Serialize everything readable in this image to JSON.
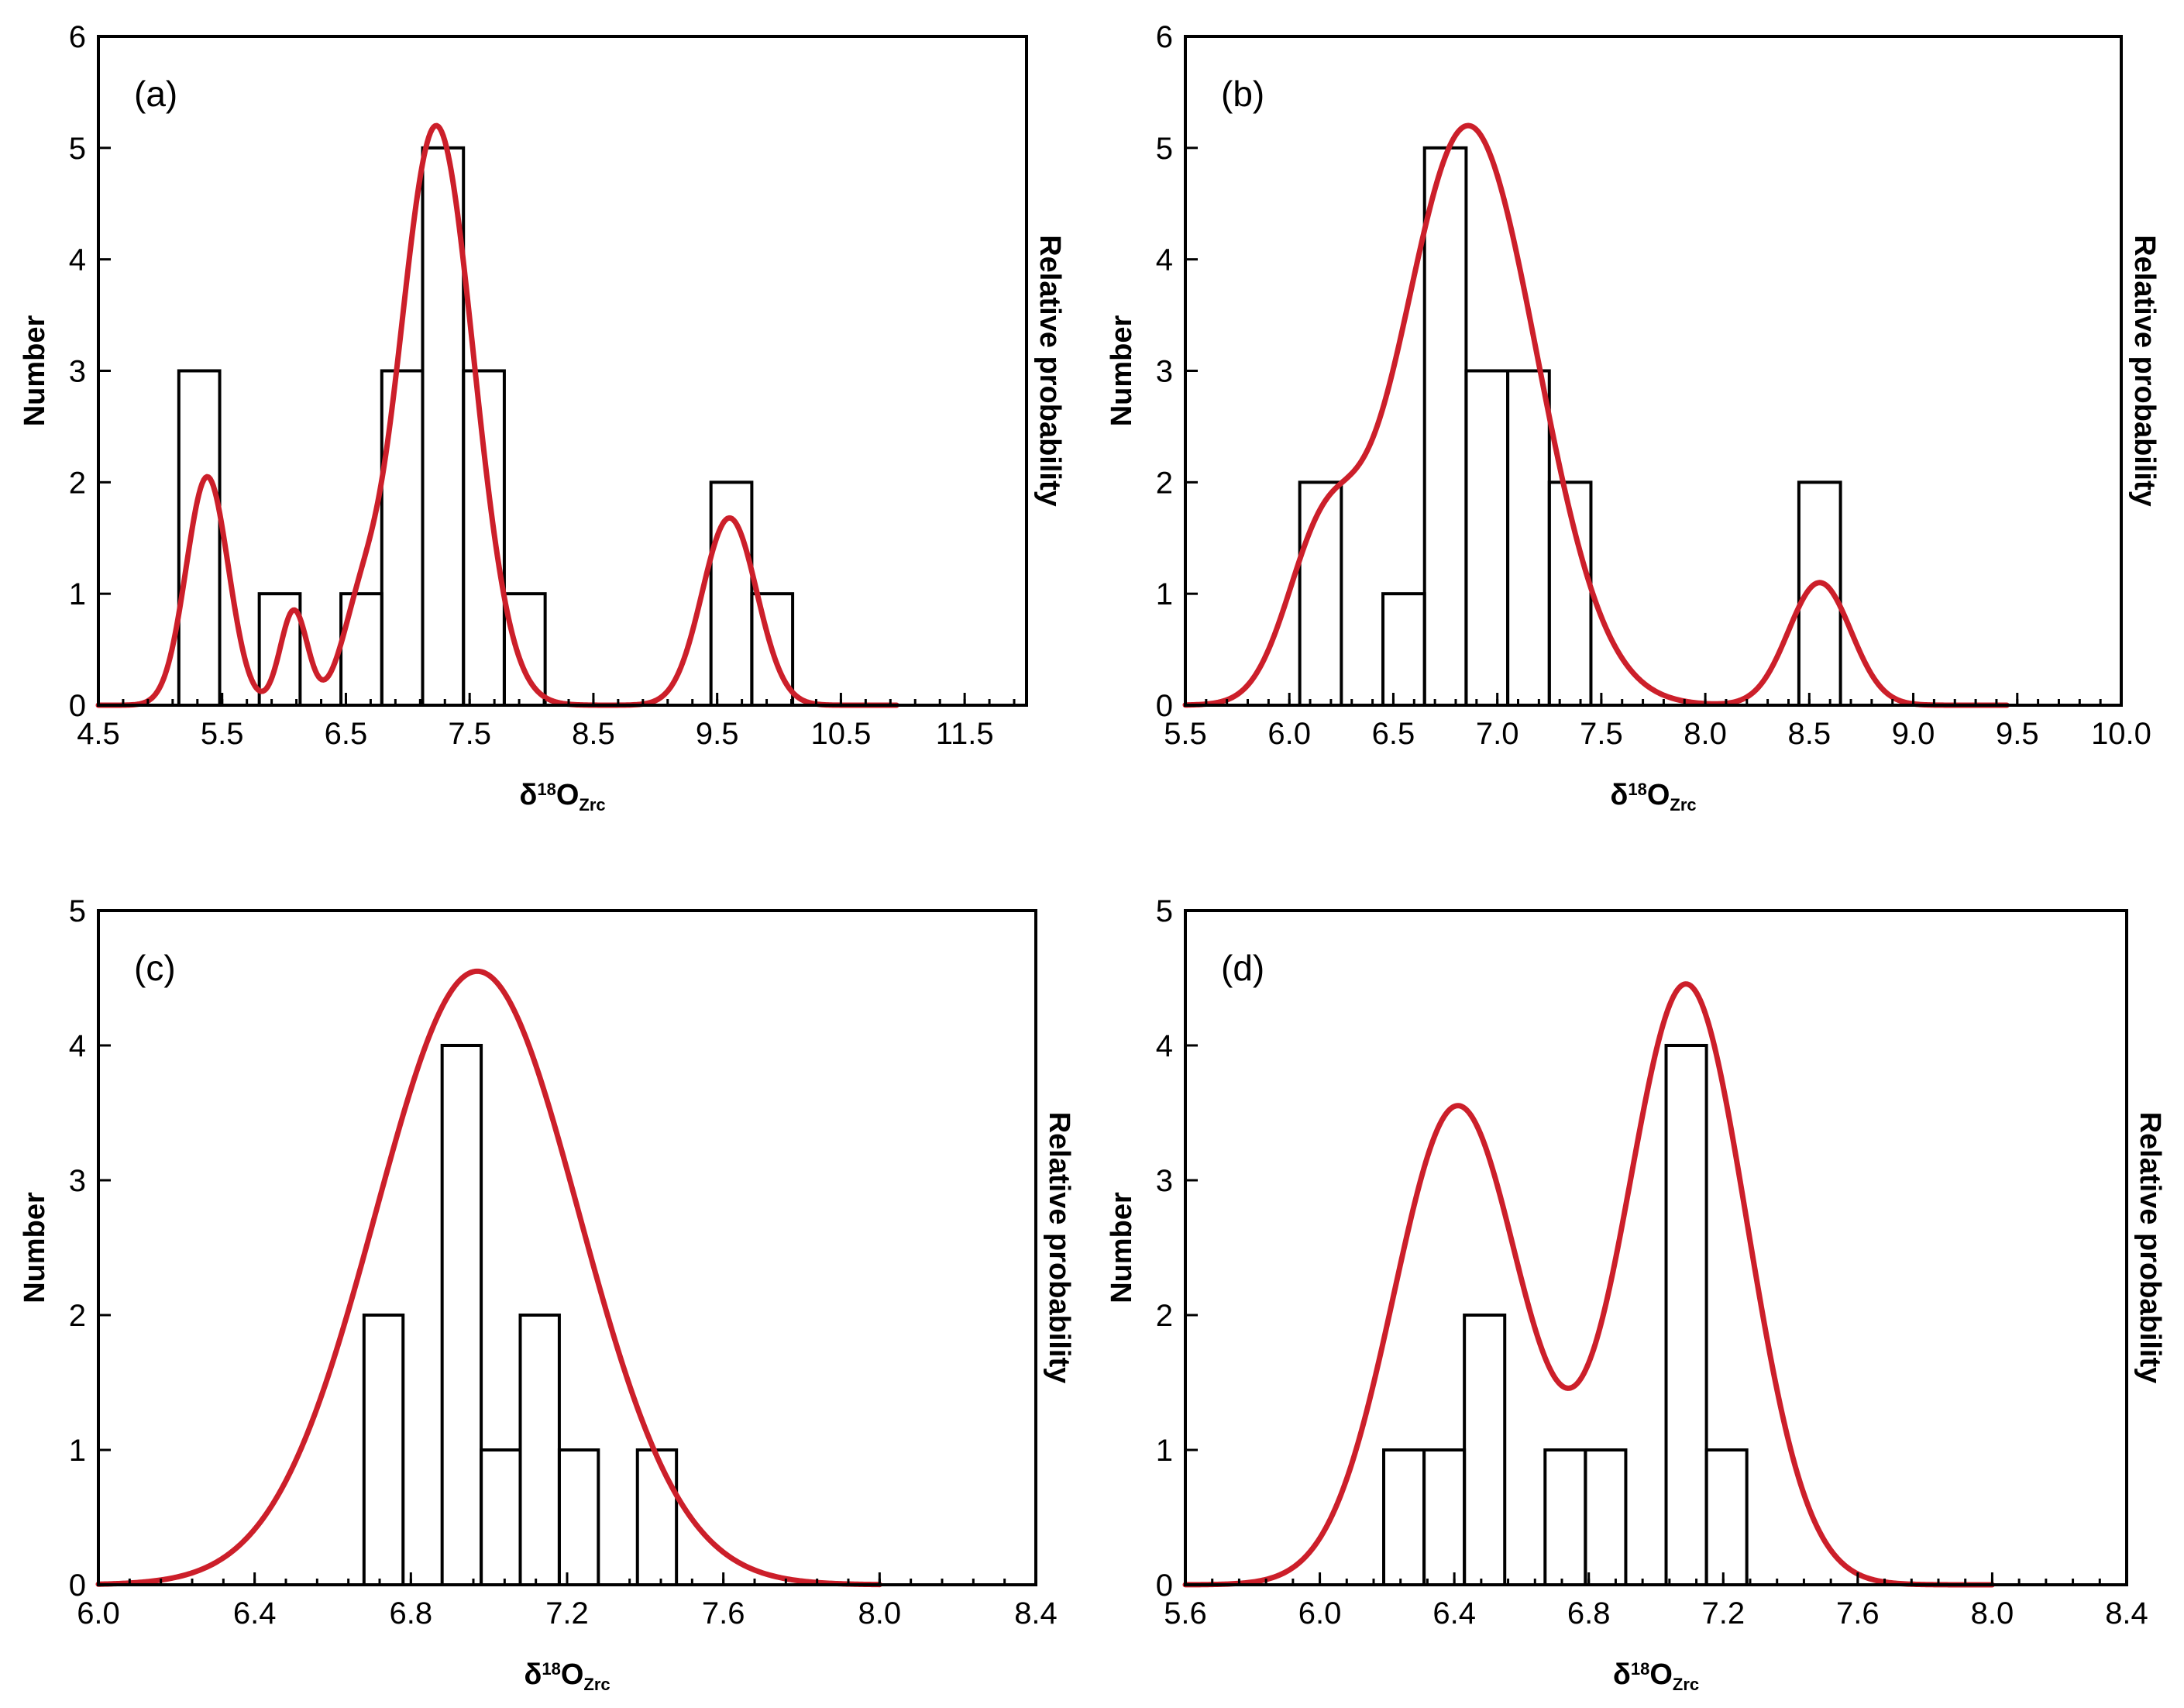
{
  "colors": {
    "curve": "#cc1f2a",
    "axis": "#000000",
    "bar_stroke": "#000000"
  },
  "chart_data": [
    {
      "type": "bar",
      "label": "(a)",
      "ylabel": "Number",
      "ylabel_right": "Relative probability",
      "xlabel": {
        "prefix": "δ",
        "sup": "18",
        "main": "O",
        "sub": "Zrc"
      },
      "xlim": [
        4.5,
        12.0
      ],
      "ylim": [
        0,
        6
      ],
      "xticks": [
        "4.5",
        "5.5",
        "6.5",
        "7.5",
        "8.5",
        "9.5",
        "10.5",
        "11.5"
      ],
      "xtick_values": [
        4.5,
        5.5,
        6.5,
        7.5,
        8.5,
        9.5,
        10.5,
        11.5
      ],
      "yticks": [
        "0",
        "1",
        "2",
        "3",
        "4",
        "5",
        "6"
      ],
      "ytick_values": [
        0,
        1,
        2,
        3,
        4,
        5,
        6
      ],
      "bars": [
        {
          "x0": 5.15,
          "x1": 5.48,
          "count": 3
        },
        {
          "x0": 5.8,
          "x1": 6.13,
          "count": 1
        },
        {
          "x0": 6.13,
          "x1": 6.46,
          "count": 0
        },
        {
          "x0": 6.46,
          "x1": 6.79,
          "count": 1
        },
        {
          "x0": 6.79,
          "x1": 7.12,
          "count": 3
        },
        {
          "x0": 7.12,
          "x1": 7.45,
          "count": 5
        },
        {
          "x0": 7.45,
          "x1": 7.78,
          "count": 3
        },
        {
          "x0": 7.78,
          "x1": 8.11,
          "count": 1
        },
        {
          "x0": 9.45,
          "x1": 9.78,
          "count": 2
        },
        {
          "x0": 9.78,
          "x1": 10.11,
          "count": 1
        }
      ],
      "curve": {
        "x_range": [
          4.5,
          10.95
        ],
        "peaks": [
          {
            "mu": 5.38,
            "sigma": 0.17,
            "amp": 2.05
          },
          {
            "mu": 6.08,
            "sigma": 0.11,
            "amp": 0.85
          },
          {
            "mu": 6.6,
            "sigma": 0.15,
            "amp": 0.55
          },
          {
            "mu": 7.23,
            "sigma": 0.3,
            "amp": 5.2
          },
          {
            "mu": 9.6,
            "sigma": 0.22,
            "amp": 1.68
          }
        ]
      }
    },
    {
      "type": "bar",
      "label": "(b)",
      "ylabel": "Number",
      "ylabel_right": "Relative probability",
      "xlabel": {
        "prefix": "δ",
        "sup": "18",
        "main": "O",
        "sub": "Zrc"
      },
      "xlim": [
        5.5,
        10.0
      ],
      "ylim": [
        0,
        6
      ],
      "xticks": [
        "5.5",
        "6.0",
        "6.5",
        "7.0",
        "7.5",
        "8.0",
        "8.5",
        "9.0",
        "9.5",
        "10.0"
      ],
      "xtick_values": [
        5.5,
        6.0,
        6.5,
        7.0,
        7.5,
        8.0,
        8.5,
        9.0,
        9.5,
        10.0
      ],
      "yticks": [
        "0",
        "1",
        "2",
        "3",
        "4",
        "5",
        "6"
      ],
      "ytick_values": [
        0,
        1,
        2,
        3,
        4,
        5,
        6
      ],
      "bars": [
        {
          "x0": 6.05,
          "x1": 6.25,
          "count": 2
        },
        {
          "x0": 6.45,
          "x1": 6.65,
          "count": 1
        },
        {
          "x0": 6.65,
          "x1": 6.85,
          "count": 5
        },
        {
          "x0": 6.85,
          "x1": 7.05,
          "count": 3
        },
        {
          "x0": 7.05,
          "x1": 7.25,
          "count": 3
        },
        {
          "x0": 7.25,
          "x1": 7.45,
          "count": 2
        },
        {
          "x0": 8.45,
          "x1": 8.65,
          "count": 2
        }
      ],
      "curve": {
        "x_range": [
          5.5,
          9.45
        ],
        "peaks": [
          {
            "mu": 6.15,
            "sigma": 0.17,
            "amp": 1.25
          },
          {
            "mu": 6.86,
            "sigma": 0.33,
            "amp": 5.2
          },
          {
            "mu": 8.55,
            "sigma": 0.15,
            "amp": 1.1
          }
        ]
      }
    },
    {
      "type": "bar",
      "label": "(c)",
      "ylabel": "Number",
      "ylabel_right": "Relative probability",
      "xlabel": {
        "prefix": "δ",
        "sup": "18",
        "main": "O",
        "sub": "Zrc"
      },
      "xlim": [
        6.0,
        8.4
      ],
      "ylim": [
        0,
        5
      ],
      "xticks": [
        "6.0",
        "6.4",
        "6.8",
        "7.2",
        "7.6",
        "8.0",
        "8.4"
      ],
      "xtick_values": [
        6.0,
        6.4,
        6.8,
        7.2,
        7.6,
        8.0,
        8.4
      ],
      "yticks": [
        "0",
        "1",
        "2",
        "3",
        "4",
        "5"
      ],
      "ytick_values": [
        0,
        1,
        2,
        3,
        4,
        5
      ],
      "bars": [
        {
          "x0": 6.68,
          "x1": 6.78,
          "count": 2
        },
        {
          "x0": 6.88,
          "x1": 6.98,
          "count": 4
        },
        {
          "x0": 6.98,
          "x1": 7.08,
          "count": 1
        },
        {
          "x0": 7.08,
          "x1": 7.18,
          "count": 2
        },
        {
          "x0": 7.18,
          "x1": 7.28,
          "count": 1
        },
        {
          "x0": 7.38,
          "x1": 7.48,
          "count": 1
        }
      ],
      "curve": {
        "x_range": [
          6.0,
          8.0
        ],
        "peaks": [
          {
            "mu": 6.97,
            "sigma": 0.26,
            "amp": 4.55
          }
        ]
      }
    },
    {
      "type": "bar",
      "label": "(d)",
      "ylabel": "Number",
      "ylabel_right": "Relative probability",
      "xlabel": {
        "prefix": "δ",
        "sup": "18",
        "main": "O",
        "sub": "Zrc"
      },
      "xlim": [
        5.6,
        8.4
      ],
      "ylim": [
        0,
        5
      ],
      "xticks": [
        "5.6",
        "6.0",
        "6.4",
        "6.8",
        "7.2",
        "7.6",
        "8.0",
        "8.4"
      ],
      "xtick_values": [
        5.6,
        6.0,
        6.4,
        6.8,
        7.2,
        7.6,
        8.0,
        8.4
      ],
      "yticks": [
        "0",
        "1",
        "2",
        "3",
        "4",
        "5"
      ],
      "ytick_values": [
        0,
        1,
        2,
        3,
        4,
        5
      ],
      "bars": [
        {
          "x0": 6.19,
          "x1": 6.31,
          "count": 1
        },
        {
          "x0": 6.31,
          "x1": 6.43,
          "count": 1
        },
        {
          "x0": 6.43,
          "x1": 6.55,
          "count": 2
        },
        {
          "x0": 6.67,
          "x1": 6.79,
          "count": 1
        },
        {
          "x0": 6.79,
          "x1": 6.91,
          "count": 1
        },
        {
          "x0": 7.03,
          "x1": 7.15,
          "count": 4
        },
        {
          "x0": 7.15,
          "x1": 7.27,
          "count": 1
        }
      ],
      "curve": {
        "x_range": [
          5.6,
          8.0
        ],
        "peaks": [
          {
            "mu": 6.41,
            "sigma": 0.19,
            "amp": 3.55
          },
          {
            "mu": 7.09,
            "sigma": 0.18,
            "amp": 4.45
          }
        ]
      }
    }
  ]
}
